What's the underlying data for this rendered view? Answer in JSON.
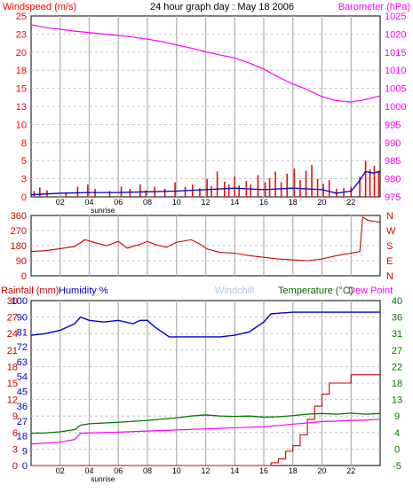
{
  "colors": {
    "wind": "#ff0000",
    "gust": "#e01010",
    "avg_wind": "#0000c0",
    "baro": "#ff00ff",
    "dir": "#cc0000",
    "humidity": "#0000cc",
    "windchill": "#a8c8e8",
    "temp_label": "#006600",
    "temp": "#007700",
    "dew": "#ff00ff",
    "rain": "#cc0000",
    "grid": "#b8b8b8",
    "frame": "#000000"
  },
  "header": {
    "title": "24 hour graph day : May 18 2006",
    "wind_label": "Windspeed (m/s)",
    "baro_label": "Barometer (hPa)"
  },
  "bottom_labels": {
    "rain": "Rainfall (mm)",
    "humidity": "Humidity %",
    "windchill": "Windchill",
    "temperature": "Temperature (°C)",
    "dewpoint": "Dew Point"
  },
  "x_axis": {
    "hours": [
      "02",
      "04",
      "06",
      "08",
      "10",
      "12",
      "14",
      "16",
      "18",
      "20",
      "22"
    ],
    "sunrise_label": "sunrise",
    "sunrise_hour": 4.2
  },
  "chart_data": [
    {
      "type": "bar",
      "name": "wind-baro-panel",
      "x_range": [
        0,
        24
      ],
      "wind_ticks": [
        "25",
        "23",
        "20",
        "18",
        "15",
        "13",
        "10",
        "8",
        "5",
        "3",
        "0"
      ],
      "baro_ticks": [
        "1025",
        "1020",
        "1015",
        "1010",
        "1005",
        "1000",
        "995",
        "990",
        "985",
        "980",
        "975"
      ],
      "wind_range": [
        0,
        25
      ],
      "baro_range": [
        975,
        1025
      ],
      "barometer": [
        [
          0,
          1022.6
        ],
        [
          1,
          1021.8
        ],
        [
          2,
          1021.3
        ],
        [
          3,
          1020.8
        ],
        [
          4,
          1020.4
        ],
        [
          5,
          1020.0
        ],
        [
          6,
          1019.6
        ],
        [
          7,
          1019.2
        ],
        [
          8,
          1018.6
        ],
        [
          9,
          1017.9
        ],
        [
          10,
          1017.0
        ],
        [
          11,
          1016.1
        ],
        [
          12,
          1015.1
        ],
        [
          13,
          1014.2
        ],
        [
          14,
          1013.4
        ],
        [
          15,
          1012.0
        ],
        [
          16,
          1010.3
        ],
        [
          17,
          1008.1
        ],
        [
          18,
          1006.2
        ],
        [
          19,
          1004.6
        ],
        [
          20,
          1002.7
        ],
        [
          21,
          1001.6
        ],
        [
          22,
          1001.2
        ],
        [
          23,
          1001.9
        ],
        [
          24,
          1002.9
        ]
      ],
      "avg_wind": [
        [
          0,
          0.3
        ],
        [
          2,
          0.5
        ],
        [
          4,
          0.6
        ],
        [
          6,
          0.6
        ],
        [
          8,
          0.7
        ],
        [
          10,
          0.8
        ],
        [
          12,
          1.0
        ],
        [
          14,
          1.2
        ],
        [
          16,
          1.0
        ],
        [
          18,
          1.2
        ],
        [
          20,
          1.0
        ],
        [
          21,
          0.5
        ],
        [
          22,
          0.8
        ],
        [
          22.5,
          2.0
        ],
        [
          23,
          3.5
        ],
        [
          23.5,
          3.3
        ],
        [
          24,
          3.5
        ]
      ],
      "gusts": [
        [
          0.2,
          0.8
        ],
        [
          0.6,
          1.3
        ],
        [
          1.1,
          0.9
        ],
        [
          2.4,
          0.6
        ],
        [
          3.2,
          1.4
        ],
        [
          3.9,
          1.7
        ],
        [
          4.4,
          1.1
        ],
        [
          5.4,
          0.8
        ],
        [
          6.2,
          1.4
        ],
        [
          6.8,
          1.1
        ],
        [
          7.5,
          1.7
        ],
        [
          7.9,
          0.9
        ],
        [
          8.5,
          1.4
        ],
        [
          9.2,
          1.1
        ],
        [
          9.9,
          2.0
        ],
        [
          10.6,
          1.4
        ],
        [
          11.1,
          1.7
        ],
        [
          11.6,
          1.2
        ],
        [
          12.1,
          2.5
        ],
        [
          12.4,
          1.5
        ],
        [
          12.8,
          3.5
        ],
        [
          13.3,
          2.1
        ],
        [
          13.6,
          1.7
        ],
        [
          14.0,
          2.8
        ],
        [
          14.3,
          1.6
        ],
        [
          14.8,
          2.2
        ],
        [
          15.1,
          1.7
        ],
        [
          15.6,
          3.0
        ],
        [
          16.1,
          2.0
        ],
        [
          16.4,
          2.6
        ],
        [
          16.8,
          3.5
        ],
        [
          17.2,
          2.0
        ],
        [
          17.6,
          3.2
        ],
        [
          18.1,
          3.9
        ],
        [
          18.5,
          2.3
        ],
        [
          18.9,
          3.6
        ],
        [
          19.3,
          4.4
        ],
        [
          19.7,
          2.5
        ],
        [
          20.1,
          1.8
        ],
        [
          20.5,
          2.3
        ],
        [
          21.0,
          1.1
        ],
        [
          21.5,
          1.2
        ],
        [
          22.0,
          1.4
        ],
        [
          22.6,
          2.8
        ],
        [
          23.0,
          5.0
        ],
        [
          23.3,
          3.8
        ],
        [
          23.6,
          4.3
        ],
        [
          23.9,
          3.6
        ]
      ]
    },
    {
      "type": "line",
      "name": "wind-direction-panel",
      "x_range": [
        0,
        24
      ],
      "dir_ticks": [
        "360",
        "270",
        "180",
        "90",
        "0"
      ],
      "dir_letters": [
        "N",
        "W",
        "S",
        "E",
        "N"
      ],
      "dir_range": [
        0,
        360
      ],
      "direction": [
        [
          0,
          145
        ],
        [
          1,
          150
        ],
        [
          2,
          162
        ],
        [
          3,
          175
        ],
        [
          3.7,
          215
        ],
        [
          4.5,
          195
        ],
        [
          5.2,
          180
        ],
        [
          6,
          205
        ],
        [
          6.6,
          165
        ],
        [
          7.4,
          185
        ],
        [
          8,
          205
        ],
        [
          8.6,
          185
        ],
        [
          9.3,
          170
        ],
        [
          10,
          200
        ],
        [
          11,
          215
        ],
        [
          11.6,
          190
        ],
        [
          12.1,
          160
        ],
        [
          13,
          140
        ],
        [
          14,
          135
        ],
        [
          15,
          120
        ],
        [
          16,
          110
        ],
        [
          17,
          100
        ],
        [
          18,
          95
        ],
        [
          19,
          90
        ],
        [
          20,
          100
        ],
        [
          21,
          120
        ],
        [
          22,
          135
        ],
        [
          22.6,
          145
        ],
        [
          22.8,
          350
        ],
        [
          23.2,
          330
        ],
        [
          23.6,
          325
        ],
        [
          24,
          320
        ]
      ]
    },
    {
      "type": "line",
      "name": "temp-humidity-rain-panel",
      "x_range": [
        0,
        24
      ],
      "rain_ticks": [
        "30",
        "27",
        "24",
        "21",
        "18",
        "15",
        "12",
        "9",
        "6",
        "3",
        "0"
      ],
      "humidity_ticks": [
        "100",
        "90",
        "81",
        "72",
        "63",
        "54",
        "45",
        "36",
        "27",
        "18",
        "9",
        "0"
      ],
      "temp_ticks": [
        "40",
        "36",
        "31",
        "27",
        "22",
        "18",
        "13",
        "9",
        "4",
        "0",
        "-5"
      ],
      "rain_range": [
        0,
        30
      ],
      "humidity_range": [
        0,
        100
      ],
      "temp_range": [
        -5,
        40
      ],
      "humidity": [
        [
          0,
          79
        ],
        [
          1,
          80
        ],
        [
          2,
          82
        ],
        [
          3,
          86
        ],
        [
          3.4,
          90
        ],
        [
          4,
          88
        ],
        [
          5,
          87
        ],
        [
          6,
          88
        ],
        [
          7,
          86
        ],
        [
          7.5,
          88
        ],
        [
          8,
          88
        ],
        [
          8.5,
          84
        ],
        [
          9,
          81
        ],
        [
          9.5,
          78
        ],
        [
          10,
          78
        ],
        [
          11,
          78
        ],
        [
          12,
          78
        ],
        [
          13,
          78
        ],
        [
          14,
          79
        ],
        [
          15,
          81
        ],
        [
          16,
          87
        ],
        [
          16.5,
          92
        ],
        [
          18,
          93
        ],
        [
          20,
          93
        ],
        [
          22,
          93
        ],
        [
          24,
          93
        ]
      ],
      "temperature": [
        [
          0,
          3.8
        ],
        [
          1,
          3.9
        ],
        [
          2,
          4.2
        ],
        [
          3,
          4.8
        ],
        [
          3.4,
          6.0
        ],
        [
          4,
          6.4
        ],
        [
          6,
          6.8
        ],
        [
          8,
          7.3
        ],
        [
          10,
          8.0
        ],
        [
          11,
          8.5
        ],
        [
          12,
          8.8
        ],
        [
          13,
          8.5
        ],
        [
          14,
          8.4
        ],
        [
          15,
          8.5
        ],
        [
          16,
          8.2
        ],
        [
          17,
          8.3
        ],
        [
          18,
          8.6
        ],
        [
          19,
          9.0
        ],
        [
          20,
          9.2
        ],
        [
          21,
          9.0
        ],
        [
          22,
          9.3
        ],
        [
          23,
          9.0
        ],
        [
          24,
          9.2
        ]
      ],
      "dewpoint": [
        [
          0,
          0.9
        ],
        [
          1,
          1.1
        ],
        [
          2,
          1.4
        ],
        [
          3,
          2.1
        ],
        [
          3.4,
          3.8
        ],
        [
          4,
          3.9
        ],
        [
          6,
          4.1
        ],
        [
          8,
          4.4
        ],
        [
          10,
          4.7
        ],
        [
          12,
          5.0
        ],
        [
          14,
          5.3
        ],
        [
          16,
          5.6
        ],
        [
          17,
          5.9
        ],
        [
          18,
          6.3
        ],
        [
          19,
          6.6
        ],
        [
          20,
          7.0
        ],
        [
          21,
          7.1
        ],
        [
          22,
          7.3
        ],
        [
          23,
          7.4
        ],
        [
          24,
          7.6
        ]
      ],
      "rainfall": [
        [
          0,
          0
        ],
        [
          16,
          0
        ],
        [
          16.5,
          0.5
        ],
        [
          17,
          1.2
        ],
        [
          17.5,
          2.6
        ],
        [
          18,
          3.6
        ],
        [
          18.5,
          5.6
        ],
        [
          19,
          8.4
        ],
        [
          19.5,
          10.8
        ],
        [
          20,
          13.0
        ],
        [
          20.5,
          15.0
        ],
        [
          21,
          15.0
        ],
        [
          22,
          16.5
        ],
        [
          23,
          16.5
        ],
        [
          24,
          16.5
        ]
      ]
    }
  ]
}
